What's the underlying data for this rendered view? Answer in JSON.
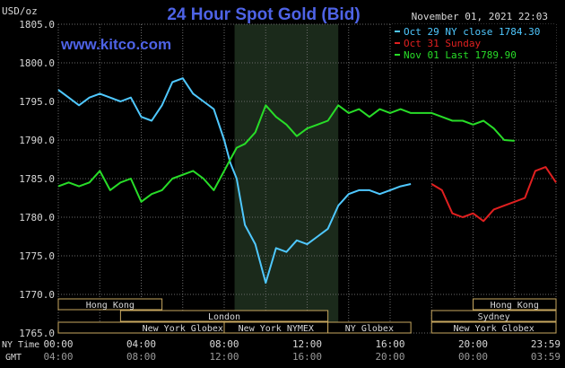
{
  "header": {
    "title": "24 Hour Spot Gold (Bid)",
    "currency": "USD/oz",
    "timestamp": "November 01, 2021 22:03",
    "watermark": "www.kitco.com"
  },
  "legend": [
    {
      "label": "Oct 29 NY close 1784.30",
      "color": "#4fc8ff"
    },
    {
      "label": "Oct 31 Sunday",
      "color": "#e02020"
    },
    {
      "label": "Nov 01 Last 1789.90",
      "color": "#28dd28"
    }
  ],
  "colors": {
    "background": "#000000",
    "plot": "#000000",
    "grid": "#6a6a6a",
    "title": "#4e63e6",
    "highlight": "#1b2a1b",
    "session_fill": "#000000",
    "session_border": "#c8a860",
    "axis_text": "#d8d8d8"
  },
  "axis_labels": {
    "ny_time": "NY Time",
    "gmt": "GMT"
  },
  "sessions": [
    {
      "name": "Hong Kong",
      "start": 0,
      "end": 5,
      "row": 0
    },
    {
      "name": "London",
      "start": 3,
      "end": 13,
      "row": 1
    },
    {
      "name": "New York Globex",
      "start": 0,
      "end": 12,
      "row": 2
    },
    {
      "name": "New York NYMEX",
      "start": 8,
      "end": 13,
      "row": 2
    },
    {
      "name": "NY Globex",
      "start": 13,
      "end": 17,
      "row": 2
    },
    {
      "name": "Hong Kong",
      "start": 20,
      "end": 24,
      "row": 0
    },
    {
      "name": "Sydney",
      "start": 18,
      "end": 24,
      "row": 1
    },
    {
      "name": "New York Globex",
      "start": 18,
      "end": 24,
      "row": 2
    }
  ],
  "chart_data": {
    "type": "line",
    "title": "24 Hour Spot Gold (Bid)",
    "ylabel": "USD/oz",
    "ylim": [
      1765,
      1805
    ],
    "yticks": [
      1765,
      1770,
      1775,
      1780,
      1785,
      1790,
      1795,
      1800,
      1805
    ],
    "xlim": [
      0,
      24
    ],
    "x_ny_labels": [
      "00:00",
      "04:00",
      "08:00",
      "12:00",
      "16:00",
      "20:00",
      "23:59"
    ],
    "x_gmt_labels": [
      "04:00",
      "08:00",
      "12:00",
      "16:00",
      "20:00",
      "00:00",
      "03:59"
    ],
    "grid": true,
    "highlight_range": [
      8.5,
      13.5
    ],
    "series": [
      {
        "name": "Oct 29 NY close 1784.30",
        "color": "#4fc8ff",
        "x": [
          0,
          0.5,
          1,
          1.5,
          2,
          2.5,
          3,
          3.5,
          4,
          4.5,
          5,
          5.5,
          6,
          6.5,
          7,
          7.5,
          8,
          8.3,
          8.6,
          9,
          9.5,
          10,
          10.5,
          11,
          11.5,
          12,
          12.5,
          13,
          13.5,
          14,
          14.5,
          15,
          15.5,
          16,
          16.5,
          17
        ],
        "y": [
          1796.5,
          1795.5,
          1794.5,
          1795.5,
          1796.0,
          1795.5,
          1795.0,
          1795.5,
          1793.0,
          1792.5,
          1794.5,
          1797.5,
          1798.0,
          1796.0,
          1795.0,
          1794.0,
          1790.0,
          1787.0,
          1785.0,
          1779.0,
          1776.5,
          1771.5,
          1776.0,
          1775.5,
          1777.0,
          1776.5,
          1777.5,
          1778.5,
          1781.5,
          1783.0,
          1783.5,
          1783.5,
          1783.0,
          1783.5,
          1784.0,
          1784.3
        ]
      },
      {
        "name": "Oct 31 Sunday",
        "color": "#e02020",
        "x": [
          18,
          18.5,
          19,
          19.5,
          20,
          20.5,
          21,
          21.5,
          22,
          22.5,
          23,
          23.5,
          24
        ],
        "y": [
          1784.3,
          1783.5,
          1780.5,
          1780.0,
          1780.5,
          1779.5,
          1781.0,
          1781.5,
          1782.0,
          1782.5,
          1786.0,
          1786.5,
          1784.5
        ]
      },
      {
        "name": "Nov 01 Last 1789.90",
        "color": "#28dd28",
        "x": [
          0,
          0.5,
          1,
          1.5,
          2,
          2.5,
          3,
          3.5,
          4,
          4.5,
          5,
          5.5,
          6,
          6.5,
          7,
          7.5,
          8,
          8.3,
          8.6,
          9,
          9.5,
          10,
          10.5,
          11,
          11.5,
          12,
          12.5,
          13,
          13.5,
          14,
          14.5,
          15,
          15.5,
          16,
          16.5,
          17,
          17.5,
          18,
          18.5,
          19,
          19.5,
          20,
          20.5,
          21,
          21.5,
          22
        ],
        "y": [
          1784.0,
          1784.5,
          1784.0,
          1784.5,
          1786.0,
          1783.5,
          1784.5,
          1785.0,
          1782.0,
          1783.0,
          1783.5,
          1785.0,
          1785.5,
          1786.0,
          1785.0,
          1783.5,
          1786.0,
          1787.5,
          1789.0,
          1789.5,
          1791.0,
          1794.5,
          1793.0,
          1792.0,
          1790.5,
          1791.5,
          1792.0,
          1792.5,
          1794.5,
          1793.5,
          1794.0,
          1793.0,
          1794.0,
          1793.5,
          1794.0,
          1793.5,
          1793.5,
          1793.5,
          1793.0,
          1792.5,
          1792.5,
          1792.0,
          1792.5,
          1791.5,
          1790.0,
          1789.9
        ]
      }
    ]
  }
}
